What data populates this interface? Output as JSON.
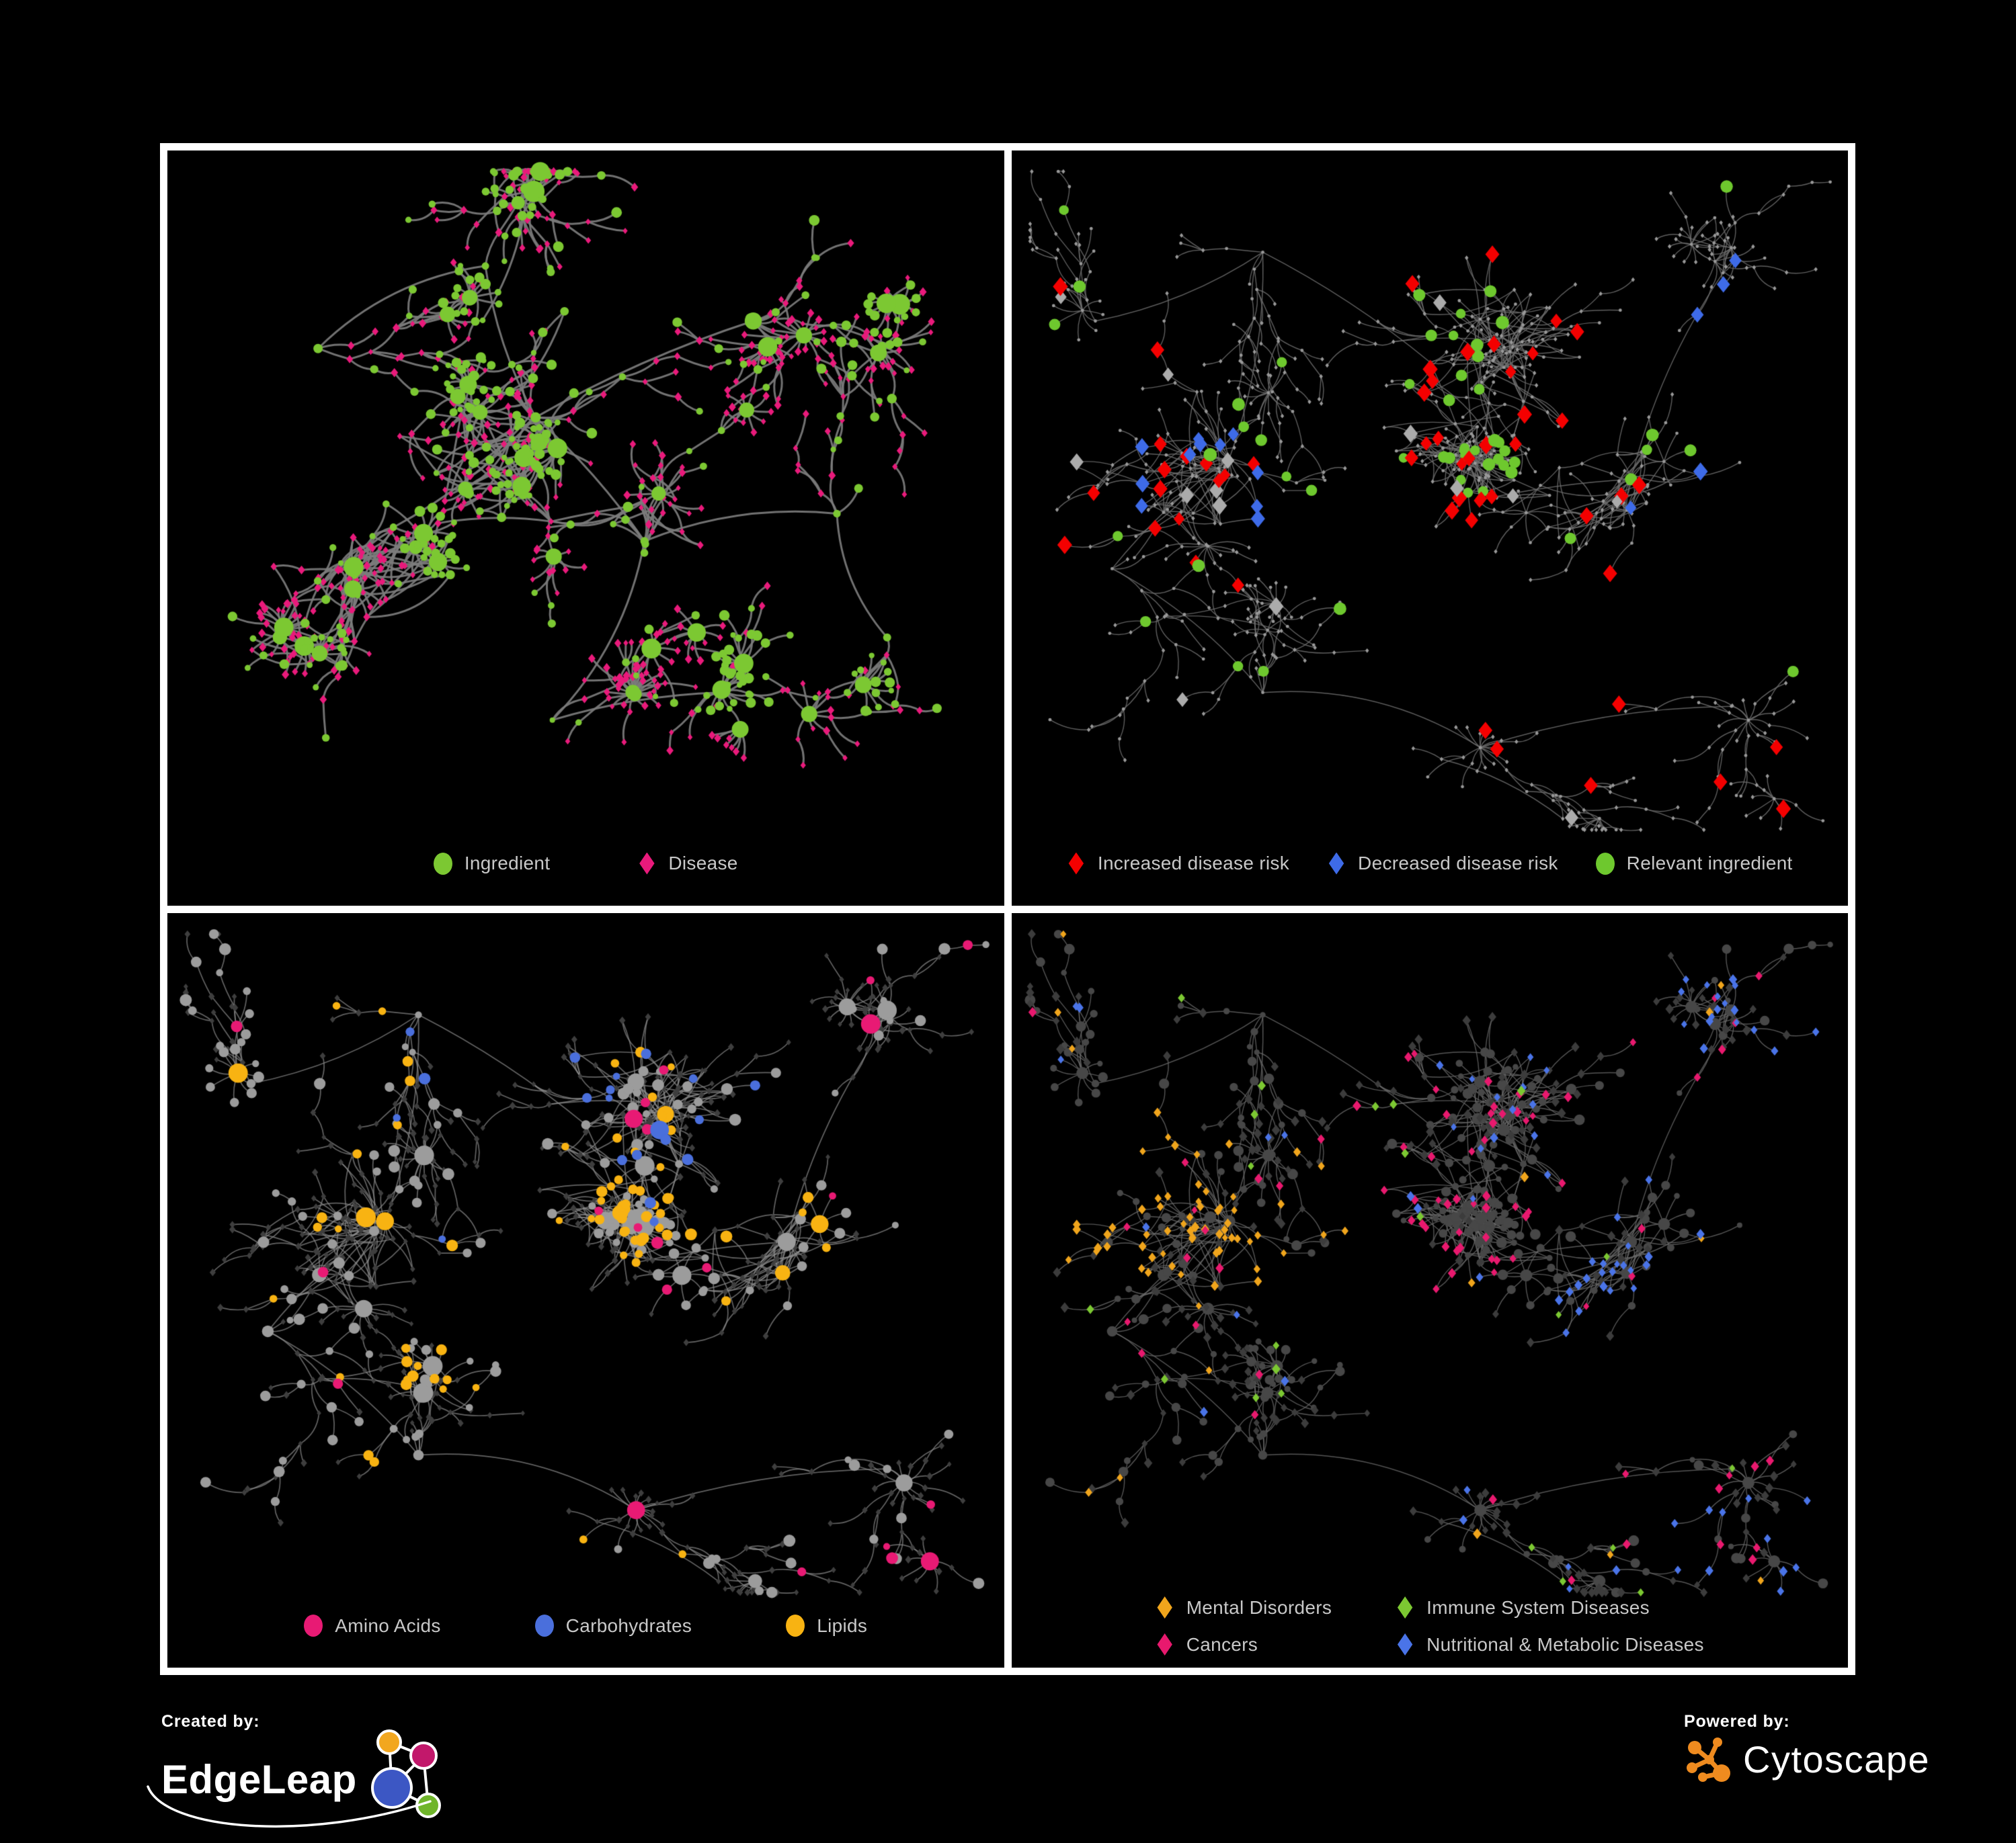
{
  "branding": {
    "created_by_label": "Created by:",
    "creator_name": "EdgeLeap",
    "powered_by_label": "Powered by:",
    "powered_name": "Cytoscape",
    "cytoscape_orange": "#ef8b1f",
    "edgeleap_node_colors": {
      "orange": "#f2a71f",
      "magenta": "#c2186b",
      "blue": "#3c57c4",
      "green": "#6fb52a"
    }
  },
  "topologies": {
    "p1": {
      "seed": 20,
      "clusters": [
        [
          0.38,
          0.16,
          85,
          0,
          0.06
        ],
        [
          0.18,
          0.28,
          75,
          0,
          0.05
        ],
        [
          0.44,
          0.38,
          150,
          1,
          0.05
        ],
        [
          0.27,
          0.54,
          110,
          1,
          0.06
        ],
        [
          0.57,
          0.56,
          90,
          1,
          0.06
        ],
        [
          0.7,
          0.24,
          85,
          0,
          0.07
        ],
        [
          0.8,
          0.52,
          60,
          0,
          0.08
        ],
        [
          0.17,
          0.74,
          55,
          0,
          0.08
        ],
        [
          0.46,
          0.82,
          70,
          0,
          0.14
        ],
        [
          0.66,
          0.78,
          55,
          0,
          0.1
        ],
        [
          0.86,
          0.7,
          40,
          0,
          0.08
        ]
      ]
    },
    "shared": {
      "seed": 77,
      "clusters": [
        [
          0.3,
          0.14,
          70,
          0,
          0.05
        ],
        [
          0.5,
          0.3,
          130,
          1,
          0.05
        ],
        [
          0.26,
          0.44,
          110,
          1,
          0.06
        ],
        [
          0.56,
          0.5,
          120,
          1,
          0.05
        ],
        [
          0.74,
          0.47,
          80,
          1,
          0.06
        ],
        [
          0.85,
          0.17,
          60,
          0,
          0.07
        ],
        [
          0.12,
          0.6,
          50,
          0,
          0.05
        ],
        [
          0.3,
          0.78,
          70,
          0,
          0.1
        ],
        [
          0.56,
          0.86,
          60,
          0,
          0.12
        ],
        [
          0.86,
          0.8,
          50,
          0,
          0.08
        ],
        [
          0.1,
          0.24,
          40,
          0,
          0.05
        ]
      ]
    }
  },
  "panels": [
    {
      "name": "ingredient-disease-network",
      "legend": [
        {
          "label": "Ingredient",
          "color": "#7cc832",
          "shape": "circle"
        },
        {
          "label": "Disease",
          "color": "#e91a7b",
          "shape": "diamond"
        }
      ],
      "network": {
        "topology": "p1",
        "edge": {
          "color": "#7c7c7c",
          "width": 3,
          "alpha": 0.92
        },
        "render": {
          "mode": "colored",
          "ingredient": {
            "color": "#7cc832",
            "rMin": 4,
            "rMax": 8,
            "hubMin": 10,
            "hubMax": 16
          },
          "disease": {
            "color": "#e91a7b",
            "sMin": 4.5,
            "sMax": 7
          }
        }
      }
    },
    {
      "name": "disease-risk-network",
      "legend": [
        {
          "label": "Increased disease risk",
          "color": "#f40000",
          "shape": "diamond"
        },
        {
          "label": "Decreased disease risk",
          "color": "#3e6be8",
          "shape": "diamond"
        },
        {
          "label": "Relevant ingredient",
          "color": "#6ec82e",
          "shape": "circle"
        }
      ],
      "network": {
        "topology": "shared",
        "edge": {
          "color": "#6f6f6f",
          "width": 1.4,
          "alpha": 0.85
        },
        "render": {
          "mode": "highlight",
          "base": {
            "color": "#999999",
            "r": 2.4
          },
          "green": "#6ec82e",
          "gMin": 7,
          "gMax": 10,
          "dMin": 10,
          "dMax": 14,
          "palette": {
            "red": "#f40000",
            "blue": "#3e6be8",
            "gray": "#ababab"
          },
          "clusters": [
            {
              "hp": 0.05,
              "red": 1,
              "blue": 0,
              "gray": 0,
              "gp": 0.12
            },
            {
              "hp": 0.1,
              "red": 0.75,
              "blue": 0,
              "gray": 0.25,
              "gp": 0.22
            },
            {
              "hp": 0.3,
              "red": 0.4,
              "blue": 0.45,
              "gray": 0.15,
              "gp": 0.25
            },
            {
              "hp": 0.28,
              "red": 0.8,
              "blue": 0,
              "gray": 0.2,
              "gp": 0.3
            },
            {
              "hp": 0.12,
              "red": 0.7,
              "blue": 0.1,
              "gray": 0.2,
              "gp": 0.15
            },
            {
              "hp": 0.06,
              "red": 0,
              "blue": 1,
              "gray": 0,
              "gp": 0.03
            },
            {
              "hp": 0.02,
              "red": 1,
              "blue": 0,
              "gray": 0,
              "gp": 0.06
            },
            {
              "hp": 0.05,
              "red": 0.6,
              "blue": 0,
              "gray": 0.4,
              "gp": 0.08
            },
            {
              "hp": 0.06,
              "red": 0.8,
              "blue": 0,
              "gray": 0.2,
              "gp": 0.1
            },
            {
              "hp": 0.1,
              "red": 1,
              "blue": 0,
              "gray": 0,
              "gp": 0.08
            },
            {
              "hp": 0.04,
              "red": 0.5,
              "blue": 0,
              "gray": 0.5,
              "gp": 0.1
            }
          ]
        }
      }
    },
    {
      "name": "ingredient-classes-network",
      "legend": [
        {
          "label": "Amino Acids",
          "color": "#e81a74",
          "shape": "circle"
        },
        {
          "label": "Carbohydrates",
          "color": "#4a6fdc",
          "shape": "circle"
        },
        {
          "label": "Lipids",
          "color": "#f8b312",
          "shape": "circle"
        }
      ],
      "network": {
        "topology": "shared",
        "edge": {
          "color": "#8d8d8d",
          "width": 1.7,
          "alpha": 0.7
        },
        "render": {
          "mode": "classifyIngredient",
          "disease": {
            "color": "#3e3e3e",
            "sMin": 4,
            "sMax": 6
          },
          "rMin": 5,
          "rMax": 9,
          "hubMin": 10,
          "hubMax": 15,
          "palette": {
            "gray": "#9c9c9c",
            "orange": "#f8b312",
            "pink": "#e81a74",
            "blue": "#4a6fdc"
          },
          "clusters": [
            {
              "gray": 0.55,
              "orange": 0.3,
              "pink": 0.05,
              "blue": 0.1
            },
            {
              "gray": 0.4,
              "orange": 0.35,
              "pink": 0.05,
              "blue": 0.2
            },
            {
              "gray": 0.5,
              "orange": 0.42,
              "pink": 0.04,
              "blue": 0.04
            },
            {
              "gray": 0.45,
              "orange": 0.45,
              "pink": 0.05,
              "blue": 0.05
            },
            {
              "gray": 0.55,
              "orange": 0.3,
              "pink": 0.15,
              "blue": 0
            },
            {
              "gray": 0.75,
              "orange": 0.05,
              "pink": 0.2,
              "blue": 0
            },
            {
              "gray": 0.8,
              "orange": 0.08,
              "pink": 0.12,
              "blue": 0
            },
            {
              "gray": 0.7,
              "orange": 0.22,
              "pink": 0.08,
              "blue": 0
            },
            {
              "gray": 0.65,
              "orange": 0.3,
              "pink": 0.05,
              "blue": 0
            },
            {
              "gray": 0.6,
              "orange": 0.25,
              "pink": 0.15,
              "blue": 0
            },
            {
              "gray": 0.75,
              "orange": 0.1,
              "pink": 0.1,
              "blue": 0.05
            }
          ]
        }
      }
    },
    {
      "name": "disease-classes-network",
      "legend": [
        {
          "label": "Mental Disorders",
          "color": "#f0a51c",
          "shape": "diamond"
        },
        {
          "label": "Immune System Diseases",
          "color": "#7cc832",
          "shape": "diamond"
        },
        {
          "label": "Cancers",
          "color": "#e8196e",
          "shape": "diamond"
        },
        {
          "label": "Nutritional & Metabolic Diseases",
          "color": "#4a74e8",
          "shape": "diamond"
        }
      ],
      "network": {
        "topology": "shared",
        "edge": {
          "color": "#6a6a6a",
          "width": 1.4,
          "alpha": 0.8
        },
        "render": {
          "mode": "classifyDisease",
          "ingredient": {
            "color": "#474747",
            "rMin": 4,
            "rMax": 8
          },
          "sMin": 5.5,
          "sMax": 8,
          "palette": {
            "dark": "#3c3c3c",
            "orange": "#f0a51c",
            "pink": "#e8196e",
            "blue": "#4a74e8",
            "green": "#7cc832"
          },
          "clusters": [
            {
              "dark": 0.6,
              "orange": 0.18,
              "pink": 0.08,
              "blue": 0.1,
              "green": 0.04
            },
            {
              "dark": 0.55,
              "orange": 0.05,
              "pink": 0.22,
              "blue": 0.13,
              "green": 0.05
            },
            {
              "dark": 0.3,
              "orange": 0.62,
              "pink": 0.03,
              "blue": 0.03,
              "green": 0.02
            },
            {
              "dark": 0.35,
              "orange": 0.05,
              "pink": 0.48,
              "blue": 0.08,
              "green": 0.04
            },
            {
              "dark": 0.42,
              "orange": 0.03,
              "pink": 0.1,
              "blue": 0.42,
              "green": 0.03
            },
            {
              "dark": 0.45,
              "orange": 0.05,
              "pink": 0.15,
              "blue": 0.35,
              "green": 0
            },
            {
              "dark": 0.72,
              "orange": 0.08,
              "pink": 0.08,
              "blue": 0.1,
              "green": 0.02
            },
            {
              "dark": 0.75,
              "orange": 0.05,
              "pink": 0.08,
              "blue": 0.08,
              "green": 0.04
            },
            {
              "dark": 0.72,
              "orange": 0.08,
              "pink": 0.1,
              "blue": 0.06,
              "green": 0.04
            },
            {
              "dark": 0.55,
              "orange": 0.05,
              "pink": 0.08,
              "blue": 0.28,
              "green": 0.04
            },
            {
              "dark": 0.6,
              "orange": 0.15,
              "pink": 0.05,
              "blue": 0.15,
              "green": 0.05
            }
          ]
        }
      }
    }
  ]
}
